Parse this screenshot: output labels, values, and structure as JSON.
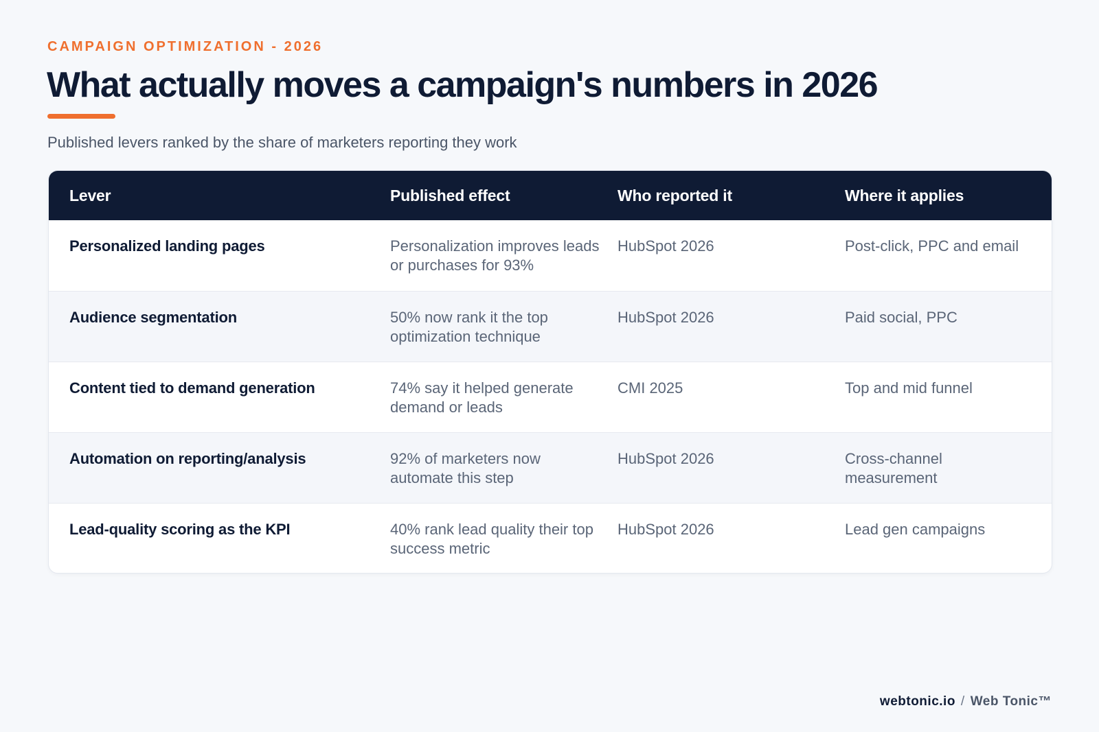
{
  "header": {
    "eyebrow": "CAMPAIGN OPTIMIZATION - 2026",
    "title": "What actually moves a campaign's numbers in 2026",
    "subtitle": "Published levers ranked by the share of marketers reporting they work"
  },
  "table": {
    "columns": [
      "Lever",
      "Published effect",
      "Who reported it",
      "Where it applies"
    ],
    "rows": [
      {
        "lever": "Personalized landing pages",
        "effect": "Personalization improves leads or purchases for 93%",
        "source": "HubSpot 2026",
        "applies": "Post-click, PPC and email"
      },
      {
        "lever": "Audience segmentation",
        "effect": "50% now rank it the top optimization technique",
        "source": "HubSpot 2026",
        "applies": "Paid social, PPC"
      },
      {
        "lever": "Content tied to demand generation",
        "effect": "74% say it helped generate demand or leads",
        "source": "CMI 2025",
        "applies": "Top and mid funnel"
      },
      {
        "lever": "Automation on reporting/analysis",
        "effect": "92% of marketers now automate this step",
        "source": "HubSpot 2026",
        "applies": "Cross-channel measurement"
      },
      {
        "lever": "Lead-quality scoring as the KPI",
        "effect": "40% rank lead quality their top success metric",
        "source": "HubSpot 2026",
        "applies": "Lead gen campaigns"
      }
    ]
  },
  "footer": {
    "domain": "webtonic.io",
    "separator": "/",
    "brand": "Web Tonic™"
  },
  "colors": {
    "accent": "#ef6f2e",
    "navy": "#0f1b34",
    "background": "#f6f8fb"
  }
}
